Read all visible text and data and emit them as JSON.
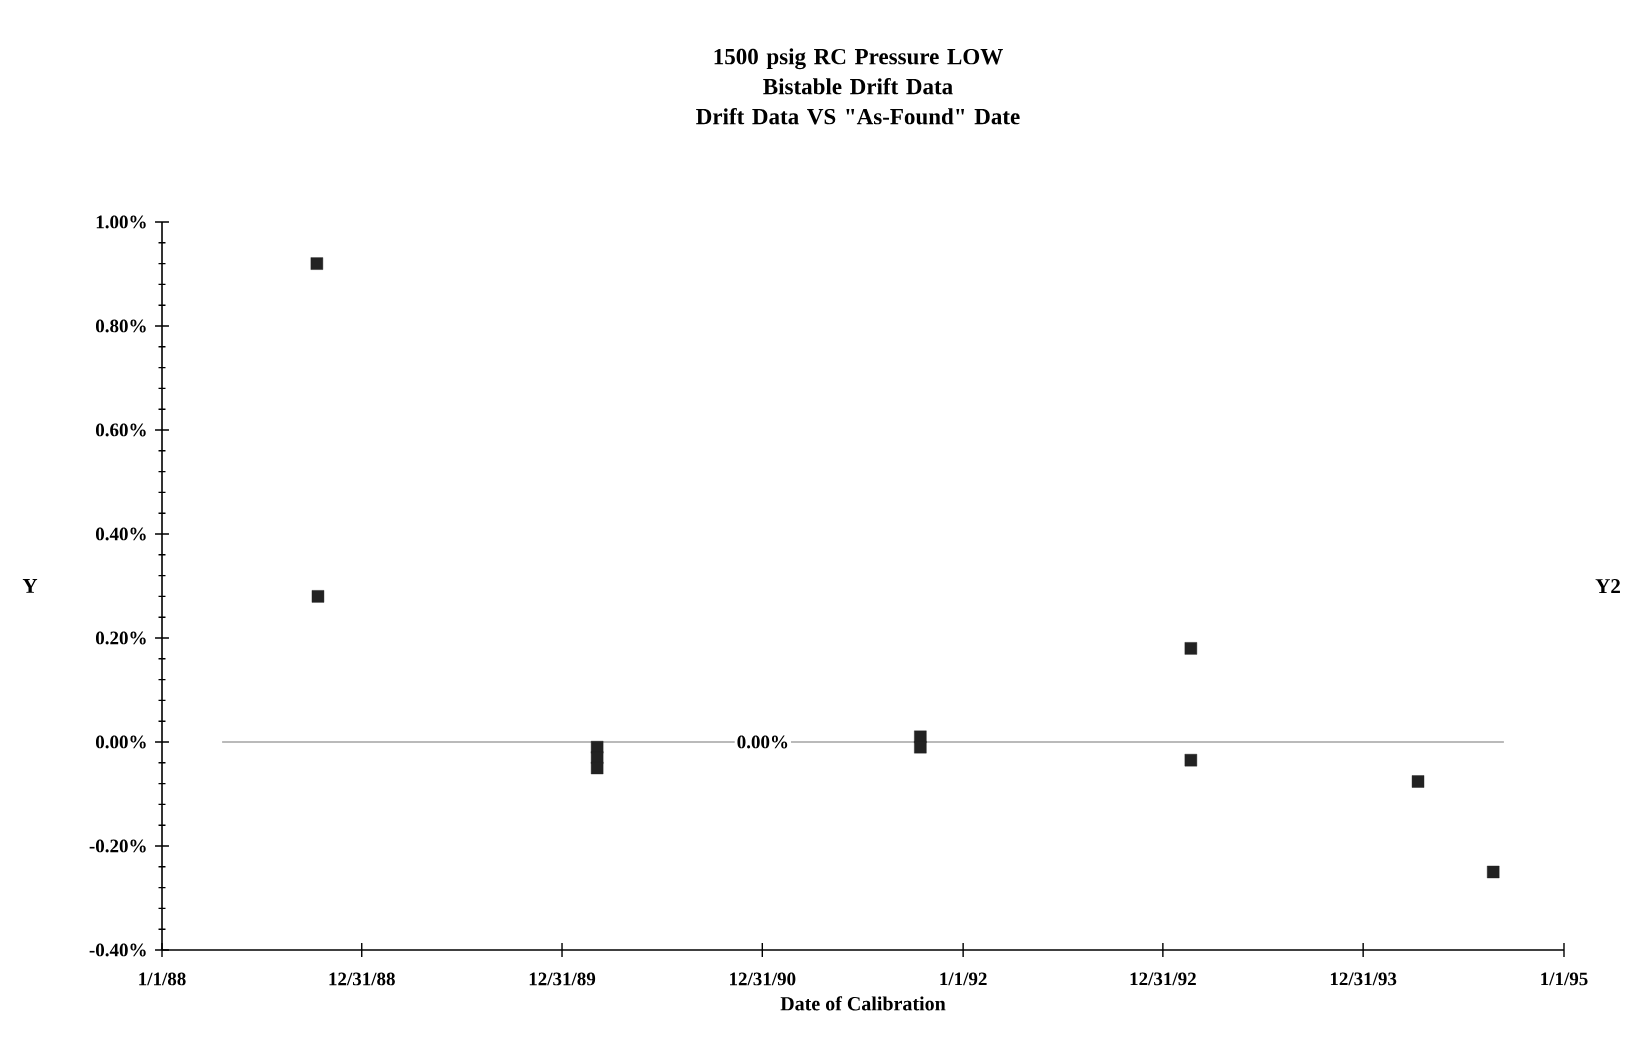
{
  "chart_data": {
    "type": "scatter",
    "title": "1500 psig RC Pressure LOW",
    "subtitle": "Bistable Drift Data\nDrift Data VS \"As-Found\" Date",
    "xlabel": "Date of Calibration",
    "ylabel": "Y",
    "y2label": "Y2",
    "series": [
      {
        "color": "#222222",
        "x": [
          "1988-10-10",
          "1988-10-12",
          "1990-03-05",
          "1990-03-05",
          "1990-03-05",
          "1991-10-15",
          "1991-10-15",
          "1993-02-20",
          "1993-02-20",
          "1994-04-10",
          "1994-08-25"
        ],
        "values": [
          0.92,
          0.28,
          -0.01,
          -0.03,
          -0.05,
          0.01,
          -0.01,
          0.18,
          -0.035,
          -0.076,
          -0.25
        ]
      }
    ],
    "marker": "square",
    "grid": false,
    "xlim": [
      "1988-01-01",
      "1995-01-01"
    ],
    "xticks": [
      {
        "value": "1988-01-01",
        "label": "1/1/88"
      },
      {
        "value": "1988-12-31",
        "label": "12/31/88"
      },
      {
        "value": "1989-12-31",
        "label": "12/31/89"
      },
      {
        "value": "1990-12-31",
        "label": "12/31/90"
      },
      {
        "value": "1992-01-01",
        "label": "1/1/92"
      },
      {
        "value": "1992-12-31",
        "label": "12/31/92"
      },
      {
        "value": "1993-12-31",
        "label": "12/31/93"
      },
      {
        "value": "1995-01-01",
        "label": "1/1/95"
      }
    ],
    "ylim": [
      -0.4,
      1.0
    ],
    "yticks": [
      {
        "value": -0.4,
        "label": "-0.40%"
      },
      {
        "value": -0.2,
        "label": "-0.20%"
      },
      {
        "value": 0.0,
        "label": "0.00%"
      },
      {
        "value": 0.2,
        "label": "0.20%"
      },
      {
        "value": 0.4,
        "label": "0.40%"
      },
      {
        "value": 0.6,
        "label": "0.60%"
      },
      {
        "value": 0.8,
        "label": "0.80%"
      },
      {
        "value": 1.0,
        "label": "1.00%"
      }
    ],
    "ref_lines": [
      {
        "axis": "y",
        "value": 0.0,
        "label": "0.00%",
        "color": "#777777"
      }
    ]
  }
}
